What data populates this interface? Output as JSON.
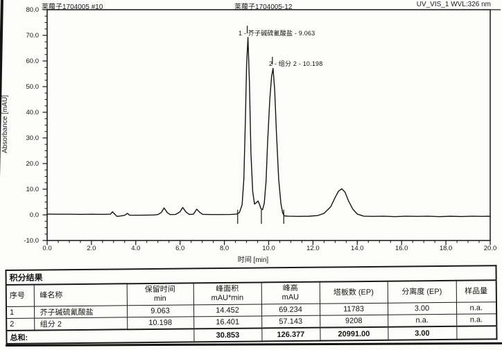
{
  "page": {
    "background": "#fcfcfa",
    "line_color": "#141414"
  },
  "chart": {
    "header": {
      "left": "莱菔子1704005 #10",
      "center": "莱菔子1704005-12",
      "right": "UV_VIS_1 WVL:326 nm"
    },
    "y_axis": {
      "title": "Absorbance [mAU]",
      "min": -10,
      "max": 80,
      "major_step": 10,
      "minor_step": 2.5,
      "tick_labels": [
        "80.0",
        "70.0",
        "60.0",
        "50.0",
        "40.0",
        "30.0",
        "20.0",
        "10.0",
        "0.0",
        "-10.0"
      ]
    },
    "x_axis": {
      "title": "时间 [min]",
      "min": 0,
      "max": 20,
      "major_step": 2,
      "minor_step": 0.5,
      "tick_labels": [
        "0.0",
        "2.0",
        "4.0",
        "6.0",
        "8.0",
        "10.0",
        "12.0",
        "14.0",
        "16.0",
        "18.0",
        "20.0"
      ]
    },
    "peak_annotations": [
      {
        "text": "1 - 芥子碱硫氰酸盐 - 9.063"
      },
      {
        "text": "2 - 组分 2 - 10.198"
      }
    ]
  },
  "chart_data": {
    "type": "line",
    "title": "UV_VIS_1 WVL:326 nm",
    "xlabel": "时间 [min]",
    "ylabel": "Absorbance [mAU]",
    "xlim": [
      0,
      20
    ],
    "ylim": [
      -10,
      80
    ],
    "grid": false,
    "peaks": [
      {
        "no": 1,
        "name": "芥子碱硫氰酸盐",
        "retention_min": 9.063,
        "area_mau_min": 14.452,
        "height_mau": 69.234,
        "plates_ep": 11783,
        "resolution_ep": "3.00",
        "amount": "n.a."
      },
      {
        "no": 2,
        "name": "组分 2",
        "retention_min": 10.198,
        "area_mau_min": 16.401,
        "height_mau": 57.143,
        "plates_ep": 9208,
        "resolution_ep": "n.a.",
        "amount": "n.a."
      },
      {
        "no": null,
        "name": "unlabeled broad peak",
        "retention_min": 13.3,
        "height_mau": 10.2
      }
    ],
    "baseline_markers_min": [
      8.6,
      9.67,
      10.68
    ],
    "apex_markers_min": [
      9.063,
      10.198
    ],
    "trace": [
      [
        0,
        0.3
      ],
      [
        0.5,
        0.25
      ],
      [
        1,
        0.25
      ],
      [
        1.5,
        0.2
      ],
      [
        2,
        0.25
      ],
      [
        2.5,
        0.2
      ],
      [
        2.85,
        0.25
      ],
      [
        2.95,
        1.2
      ],
      [
        3.05,
        0.3
      ],
      [
        3.15,
        -0.6
      ],
      [
        3.3,
        -0.45
      ],
      [
        3.5,
        -0.2
      ],
      [
        3.62,
        0.6
      ],
      [
        3.72,
        -0.1
      ],
      [
        4,
        -0.15
      ],
      [
        4.4,
        -0.1
      ],
      [
        4.8,
        -0.05
      ],
      [
        5.0,
        0.1
      ],
      [
        5.15,
        0.9
      ],
      [
        5.28,
        2.7
      ],
      [
        5.42,
        0.9
      ],
      [
        5.55,
        0.1
      ],
      [
        5.8,
        0.15
      ],
      [
        6.0,
        1.2
      ],
      [
        6.12,
        2.9
      ],
      [
        6.28,
        1.0
      ],
      [
        6.42,
        0.15
      ],
      [
        6.6,
        0.25
      ],
      [
        6.75,
        2.2
      ],
      [
        6.9,
        0.9
      ],
      [
        7.02,
        0.2
      ],
      [
        7.4,
        0.1
      ],
      [
        7.8,
        0.1
      ],
      [
        8.3,
        0.15
      ],
      [
        8.55,
        0.3
      ],
      [
        8.68,
        0.9
      ],
      [
        8.8,
        4
      ],
      [
        8.88,
        14
      ],
      [
        8.95,
        38
      ],
      [
        9.0,
        58
      ],
      [
        9.063,
        69.2
      ],
      [
        9.13,
        52
      ],
      [
        9.2,
        24
      ],
      [
        9.28,
        9
      ],
      [
        9.36,
        4.2
      ],
      [
        9.45,
        4.8
      ],
      [
        9.52,
        5.4
      ],
      [
        9.58,
        4.2
      ],
      [
        9.65,
        2.4
      ],
      [
        9.72,
        2.0
      ],
      [
        9.8,
        4.5
      ],
      [
        9.88,
        13
      ],
      [
        9.95,
        28
      ],
      [
        10.05,
        45
      ],
      [
        10.13,
        54
      ],
      [
        10.198,
        57.1
      ],
      [
        10.27,
        49
      ],
      [
        10.35,
        32
      ],
      [
        10.45,
        14
      ],
      [
        10.55,
        4.5
      ],
      [
        10.63,
        0.8
      ],
      [
        10.7,
        -0.4
      ],
      [
        10.9,
        -0.5
      ],
      [
        11.3,
        -0.6
      ],
      [
        11.8,
        -0.55
      ],
      [
        12.2,
        -0.3
      ],
      [
        12.5,
        0.6
      ],
      [
        12.8,
        3.2
      ],
      [
        13.0,
        6.8
      ],
      [
        13.15,
        9.2
      ],
      [
        13.3,
        10.2
      ],
      [
        13.45,
        8.8
      ],
      [
        13.6,
        5.5
      ],
      [
        13.8,
        2.2
      ],
      [
        14.0,
        0.3
      ],
      [
        14.3,
        -0.5
      ],
      [
        14.7,
        -0.6
      ],
      [
        15.2,
        -0.5
      ],
      [
        15.7,
        -0.7
      ],
      [
        16.2,
        -0.5
      ],
      [
        16.7,
        -0.6
      ],
      [
        17.2,
        -0.5
      ],
      [
        17.7,
        -0.7
      ],
      [
        18.2,
        -0.55
      ],
      [
        18.7,
        -0.65
      ],
      [
        19.2,
        -0.5
      ],
      [
        19.6,
        -0.6
      ],
      [
        20,
        -0.55
      ]
    ]
  },
  "table": {
    "title": "积分结果",
    "columns": [
      {
        "label": "序号",
        "unit": ""
      },
      {
        "label": "峰名称",
        "unit": ""
      },
      {
        "label": "保留时间",
        "unit": "min"
      },
      {
        "label": "峰面积",
        "unit": "mAU*min"
      },
      {
        "label": "峰高",
        "unit": "mAU"
      },
      {
        "label": "塔板数 (EP)",
        "unit": ""
      },
      {
        "label": "分离度 (EP)",
        "unit": ""
      },
      {
        "label": "样品量",
        "unit": ""
      }
    ],
    "rows": [
      [
        "1",
        "芥子碱硫氰酸盐",
        "9.063",
        "14.452",
        "69.234",
        "11783",
        "3.00",
        "n.a."
      ],
      [
        "2",
        "组分 2",
        "10.198",
        "16.401",
        "57.143",
        "9208",
        "n.a.",
        "n.a."
      ]
    ],
    "sum_row": {
      "label": "总和:",
      "values": [
        "30.853",
        "126.377",
        "20991.00",
        "3.00",
        ""
      ]
    }
  }
}
